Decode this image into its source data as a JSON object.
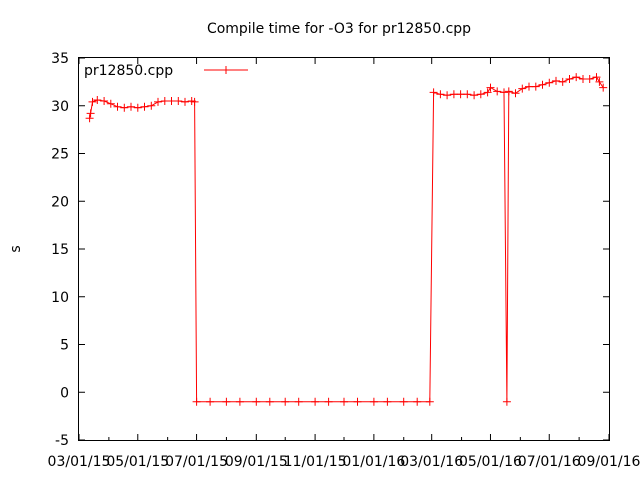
{
  "chart_data": {
    "type": "line",
    "title": "Compile time for -O3 for pr12850.cpp",
    "xlabel": "",
    "ylabel": "s",
    "xlim": [
      "03/01/15",
      "09/01/16"
    ],
    "ylim": [
      -5,
      35
    ],
    "x_tick_labels": [
      "03/01/15",
      "05/01/15",
      "07/01/15",
      "09/01/15",
      "11/01/15",
      "01/01/16",
      "03/01/16",
      "05/01/16",
      "07/01/16",
      "09/01/16"
    ],
    "y_ticks": [
      -5,
      0,
      5,
      10,
      15,
      20,
      25,
      30,
      35
    ],
    "grid": false,
    "legend_position": "top-left",
    "series_color": "#ff0000",
    "series": [
      {
        "name": "pr12850.cpp",
        "points": [
          [
            "2015-03-12",
            28.7
          ],
          [
            "2015-03-13",
            29.2
          ],
          [
            "2015-03-15",
            30.4
          ],
          [
            "2015-03-20",
            30.6
          ],
          [
            "2015-03-27",
            30.5
          ],
          [
            "2015-04-03",
            30.2
          ],
          [
            "2015-04-10",
            29.9
          ],
          [
            "2015-04-17",
            29.8
          ],
          [
            "2015-04-24",
            29.9
          ],
          [
            "2015-05-01",
            29.8
          ],
          [
            "2015-05-08",
            29.9
          ],
          [
            "2015-05-15",
            30.0
          ],
          [
            "2015-05-22",
            30.4
          ],
          [
            "2015-05-29",
            30.5
          ],
          [
            "2015-06-05",
            30.5
          ],
          [
            "2015-06-12",
            30.5
          ],
          [
            "2015-06-19",
            30.4
          ],
          [
            "2015-06-26",
            30.5
          ],
          [
            "2015-06-29",
            30.4
          ],
          [
            "2015-07-01",
            -1.0
          ],
          [
            "2015-07-15",
            -1.0
          ],
          [
            "2015-08-01",
            -1.0
          ],
          [
            "2015-08-15",
            -1.0
          ],
          [
            "2015-09-01",
            -1.0
          ],
          [
            "2015-09-15",
            -1.0
          ],
          [
            "2015-10-01",
            -1.0
          ],
          [
            "2015-10-15",
            -1.0
          ],
          [
            "2015-11-01",
            -1.0
          ],
          [
            "2015-11-15",
            -1.0
          ],
          [
            "2015-12-01",
            -1.0
          ],
          [
            "2015-12-15",
            -1.0
          ],
          [
            "2016-01-01",
            -1.0
          ],
          [
            "2016-01-15",
            -1.0
          ],
          [
            "2016-02-01",
            -1.0
          ],
          [
            "2016-02-15",
            -1.0
          ],
          [
            "2016-02-28",
            -1.0
          ],
          [
            "2016-03-03",
            31.4
          ],
          [
            "2016-03-10",
            31.2
          ],
          [
            "2016-03-17",
            31.1
          ],
          [
            "2016-03-24",
            31.2
          ],
          [
            "2016-03-31",
            31.2
          ],
          [
            "2016-04-07",
            31.2
          ],
          [
            "2016-04-14",
            31.1
          ],
          [
            "2016-04-21",
            31.2
          ],
          [
            "2016-04-28",
            31.4
          ],
          [
            "2016-05-01",
            31.9
          ],
          [
            "2016-05-08",
            31.5
          ],
          [
            "2016-05-15",
            31.4
          ],
          [
            "2016-05-18",
            -1.0
          ],
          [
            "2016-05-20",
            31.5
          ],
          [
            "2016-05-27",
            31.3
          ],
          [
            "2016-06-03",
            31.8
          ],
          [
            "2016-06-10",
            32.0
          ],
          [
            "2016-06-17",
            32.0
          ],
          [
            "2016-06-24",
            32.2
          ],
          [
            "2016-07-01",
            32.4
          ],
          [
            "2016-07-08",
            32.6
          ],
          [
            "2016-07-15",
            32.5
          ],
          [
            "2016-07-22",
            32.8
          ],
          [
            "2016-07-29",
            33.0
          ],
          [
            "2016-08-05",
            32.8
          ],
          [
            "2016-08-12",
            32.8
          ],
          [
            "2016-08-19",
            33.0
          ],
          [
            "2016-08-22",
            32.5
          ],
          [
            "2016-08-26",
            31.9
          ]
        ]
      }
    ]
  }
}
